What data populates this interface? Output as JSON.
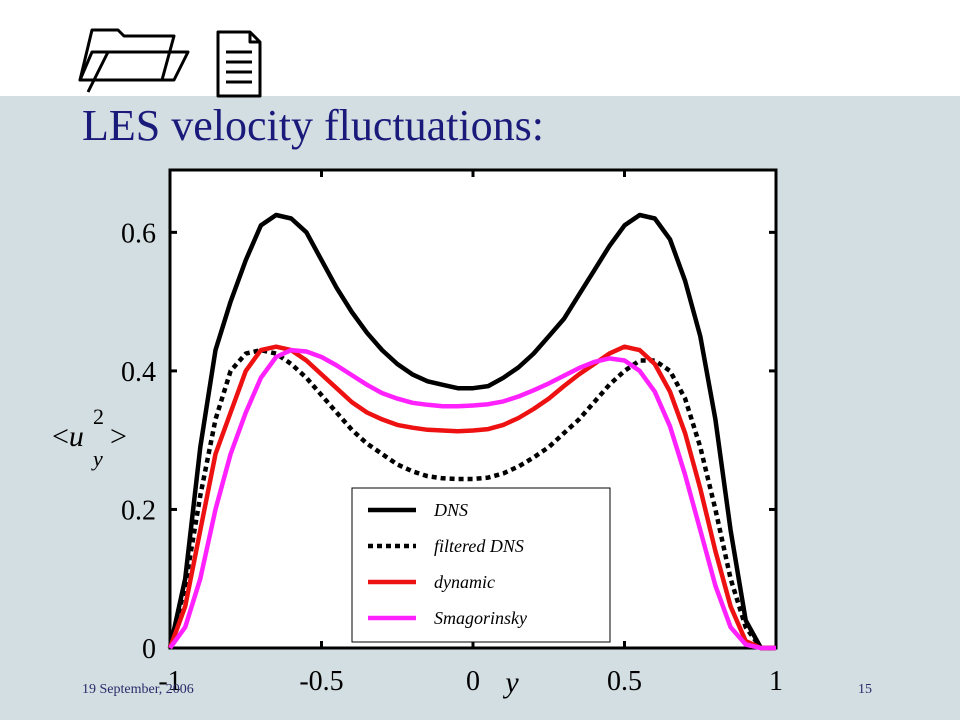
{
  "slide": {
    "title": "LES velocity fluctuations:",
    "date": "19 September, 2006",
    "page_number": "15"
  },
  "icons": [
    "folder-icon",
    "document-icon"
  ],
  "chart_data": {
    "type": "line",
    "title": "",
    "xlabel": "y",
    "ylabel_parts": {
      "open": "<",
      "base": "u",
      "sup": "2",
      "sub": "y",
      "close": ">"
    },
    "xlim": [
      -1,
      1
    ],
    "ylim": [
      0,
      0.69
    ],
    "xticks": [
      -1,
      -0.5,
      0,
      0.5,
      1
    ],
    "xtick_labels": [
      "-1",
      "-0.5",
      "0",
      "0.5",
      "1"
    ],
    "yticks": [
      0,
      0.2,
      0.4,
      0.6
    ],
    "ytick_labels": [
      "0",
      "0.2",
      "0.4",
      "0.6"
    ],
    "grid": false,
    "legend_position": "lower-center",
    "series": [
      {
        "name": "DNS",
        "color": "#000000",
        "dash": "solid",
        "x": [
          -1,
          -0.95,
          -0.9,
          -0.85,
          -0.8,
          -0.75,
          -0.7,
          -0.65,
          -0.6,
          -0.55,
          -0.5,
          -0.45,
          -0.4,
          -0.35,
          -0.3,
          -0.25,
          -0.2,
          -0.15,
          -0.1,
          -0.05,
          0,
          0.05,
          0.1,
          0.15,
          0.2,
          0.25,
          0.3,
          0.35,
          0.4,
          0.45,
          0.5,
          0.55,
          0.6,
          0.65,
          0.7,
          0.75,
          0.8,
          0.85,
          0.9,
          0.95,
          1
        ],
        "y": [
          0,
          0.1,
          0.29,
          0.43,
          0.5,
          0.56,
          0.61,
          0.625,
          0.62,
          0.6,
          0.56,
          0.52,
          0.485,
          0.455,
          0.43,
          0.41,
          0.395,
          0.385,
          0.38,
          0.375,
          0.375,
          0.378,
          0.39,
          0.405,
          0.425,
          0.45,
          0.475,
          0.51,
          0.545,
          0.58,
          0.61,
          0.625,
          0.62,
          0.59,
          0.53,
          0.45,
          0.33,
          0.17,
          0.04,
          0,
          0
        ]
      },
      {
        "name": "filtered DNS",
        "color": "#000000",
        "dash": "dotted",
        "x": [
          -1,
          -0.95,
          -0.9,
          -0.85,
          -0.8,
          -0.75,
          -0.7,
          -0.65,
          -0.6,
          -0.55,
          -0.5,
          -0.45,
          -0.4,
          -0.35,
          -0.3,
          -0.25,
          -0.2,
          -0.15,
          -0.1,
          -0.05,
          0,
          0.05,
          0.1,
          0.15,
          0.2,
          0.25,
          0.3,
          0.35,
          0.4,
          0.45,
          0.5,
          0.55,
          0.6,
          0.65,
          0.7,
          0.75,
          0.8,
          0.85,
          0.9,
          0.95,
          1
        ],
        "y": [
          0,
          0.09,
          0.22,
          0.33,
          0.4,
          0.425,
          0.43,
          0.425,
          0.41,
          0.39,
          0.365,
          0.34,
          0.315,
          0.295,
          0.28,
          0.265,
          0.255,
          0.248,
          0.245,
          0.244,
          0.244,
          0.246,
          0.252,
          0.262,
          0.275,
          0.29,
          0.31,
          0.33,
          0.355,
          0.38,
          0.4,
          0.415,
          0.415,
          0.4,
          0.36,
          0.29,
          0.2,
          0.1,
          0.03,
          0,
          0
        ]
      },
      {
        "name": "dynamic",
        "color": "#ee1111",
        "dash": "solid",
        "x": [
          -1,
          -0.95,
          -0.9,
          -0.85,
          -0.8,
          -0.75,
          -0.7,
          -0.65,
          -0.6,
          -0.55,
          -0.5,
          -0.45,
          -0.4,
          -0.35,
          -0.3,
          -0.25,
          -0.2,
          -0.15,
          -0.1,
          -0.05,
          0,
          0.05,
          0.1,
          0.15,
          0.2,
          0.25,
          0.3,
          0.35,
          0.4,
          0.45,
          0.5,
          0.55,
          0.6,
          0.65,
          0.7,
          0.75,
          0.8,
          0.85,
          0.9,
          0.95,
          1
        ],
        "y": [
          0,
          0.06,
          0.17,
          0.28,
          0.34,
          0.4,
          0.43,
          0.435,
          0.43,
          0.415,
          0.395,
          0.375,
          0.355,
          0.34,
          0.33,
          0.322,
          0.318,
          0.315,
          0.314,
          0.313,
          0.314,
          0.316,
          0.322,
          0.332,
          0.345,
          0.36,
          0.378,
          0.395,
          0.41,
          0.425,
          0.435,
          0.43,
          0.41,
          0.37,
          0.31,
          0.23,
          0.14,
          0.06,
          0.01,
          0,
          0
        ]
      },
      {
        "name": "Smagorinsky",
        "color": "#ff22ff",
        "dash": "solid",
        "x": [
          -1,
          -0.95,
          -0.9,
          -0.85,
          -0.8,
          -0.75,
          -0.7,
          -0.65,
          -0.6,
          -0.55,
          -0.5,
          -0.45,
          -0.4,
          -0.35,
          -0.3,
          -0.25,
          -0.2,
          -0.15,
          -0.1,
          -0.05,
          0,
          0.05,
          0.1,
          0.15,
          0.2,
          0.25,
          0.3,
          0.35,
          0.4,
          0.45,
          0.5,
          0.55,
          0.6,
          0.65,
          0.7,
          0.75,
          0.8,
          0.85,
          0.9,
          0.95,
          1
        ],
        "y": [
          0,
          0.03,
          0.1,
          0.2,
          0.28,
          0.34,
          0.39,
          0.42,
          0.43,
          0.428,
          0.42,
          0.408,
          0.394,
          0.38,
          0.368,
          0.36,
          0.354,
          0.351,
          0.349,
          0.349,
          0.35,
          0.352,
          0.356,
          0.363,
          0.372,
          0.382,
          0.393,
          0.404,
          0.413,
          0.418,
          0.415,
          0.4,
          0.37,
          0.32,
          0.25,
          0.17,
          0.09,
          0.03,
          0.005,
          0,
          0
        ]
      }
    ]
  }
}
